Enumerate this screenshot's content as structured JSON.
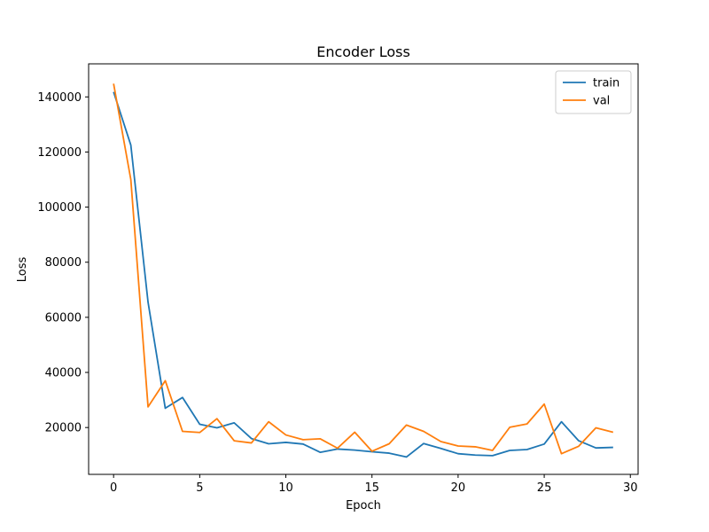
{
  "chart_data": {
    "type": "line",
    "title": "Encoder Loss",
    "xlabel": "Epoch",
    "ylabel": "Loss",
    "xlim": [
      -1.45,
      30.45
    ],
    "ylim": [
      3000,
      152000
    ],
    "xticks": [
      0,
      5,
      10,
      15,
      20,
      25,
      30
    ],
    "yticks": [
      20000,
      40000,
      60000,
      80000,
      100000,
      120000,
      140000
    ],
    "grid": false,
    "legend_position": "top-right",
    "x": [
      0,
      1,
      2,
      3,
      4,
      5,
      6,
      7,
      8,
      9,
      10,
      11,
      12,
      13,
      14,
      15,
      16,
      17,
      18,
      19,
      20,
      21,
      22,
      23,
      24,
      25,
      26,
      27,
      28,
      29
    ],
    "series": [
      {
        "name": "train",
        "color": "#1f77b4",
        "values": [
          141800,
          122500,
          65500,
          27000,
          30900,
          21200,
          19900,
          21700,
          16000,
          14100,
          14600,
          14000,
          11000,
          12200,
          11800,
          11200,
          10700,
          9300,
          14200,
          12400,
          10500,
          10000,
          9800,
          11700,
          12000,
          14000,
          22100,
          15200,
          12600,
          12800
        ]
      },
      {
        "name": "val",
        "color": "#ff7f0e",
        "values": [
          144800,
          110000,
          27500,
          37000,
          18600,
          18200,
          23200,
          15200,
          14400,
          22100,
          17300,
          15600,
          15900,
          12500,
          18300,
          11400,
          14100,
          20900,
          18600,
          14900,
          13300,
          13000,
          11700,
          20100,
          21300,
          28500,
          10500,
          13200,
          19900,
          18300
        ]
      }
    ]
  }
}
